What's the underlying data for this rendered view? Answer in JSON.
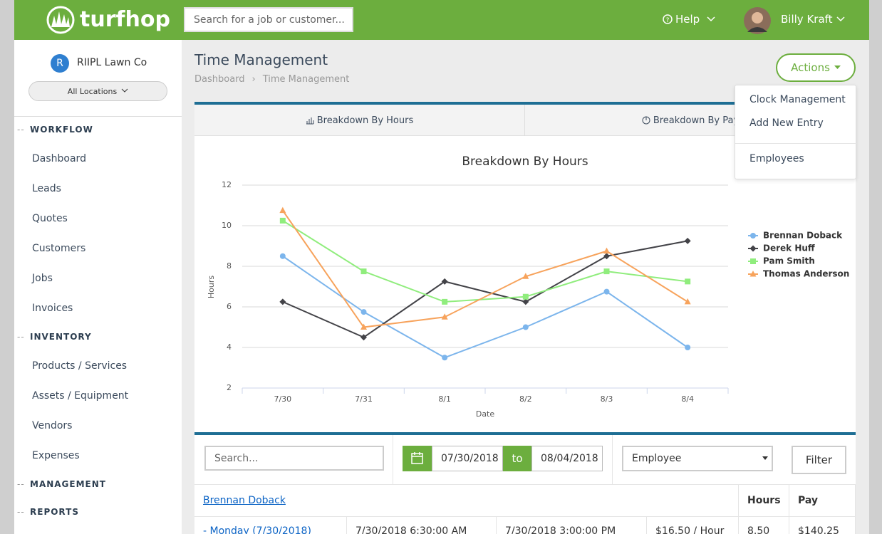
{
  "header": {
    "brand": "turfhop",
    "search_placeholder": "Search for a job or customer...",
    "help": "Help",
    "user": "Billy Kraft"
  },
  "sidebar": {
    "company_initial": "R",
    "company": "RIIPL Lawn Co",
    "location": "All Locations",
    "sections": [
      {
        "title": "WORKFLOW",
        "items": [
          "Dashboard",
          "Leads",
          "Quotes",
          "Customers",
          "Jobs",
          "Invoices"
        ]
      },
      {
        "title": "INVENTORY",
        "items": [
          "Products / Services",
          "Assets / Equipment",
          "Vendors",
          "Expenses"
        ]
      },
      {
        "title": "MANAGEMENT"
      },
      {
        "title": "REPORTS"
      }
    ]
  },
  "page": {
    "title": "Time Management",
    "breadcrumb": [
      "Dashboard",
      "Time Management"
    ],
    "actions": "Actions",
    "actions_menu": [
      "Clock Management",
      "Add New Entry",
      "Employees"
    ]
  },
  "tabs": [
    "Breakdown By Hours",
    "Breakdown By Pay"
  ],
  "chart_data": {
    "type": "line",
    "title": "Breakdown By Hours",
    "x_label": "Date",
    "y_label": "Hours",
    "categories": [
      "7/30",
      "7/31",
      "8/1",
      "8/2",
      "8/3",
      "8/4"
    ],
    "ylim": [
      2,
      12
    ],
    "yticks": [
      2,
      4,
      6,
      8,
      10,
      12
    ],
    "grid": true,
    "legend": "right",
    "series": [
      {
        "name": "Brennan Doback",
        "color": "#7cb5ec",
        "marker": "circle",
        "values": [
          8.5,
          5.75,
          3.5,
          5,
          6.75,
          4
        ]
      },
      {
        "name": "Derek Huff",
        "color": "#434348",
        "marker": "diamond",
        "values": [
          6.25,
          4.5,
          7.25,
          6.25,
          8.5,
          9.25
        ]
      },
      {
        "name": "Pam Smith",
        "color": "#90ed7d",
        "marker": "square",
        "values": [
          10.25,
          7.75,
          6.25,
          6.5,
          7.75,
          7.25
        ]
      },
      {
        "name": "Thomas Anderson",
        "color": "#f7a35c",
        "marker": "triangle",
        "values": [
          10.75,
          5,
          5.5,
          7.5,
          8.75,
          6.25
        ]
      }
    ]
  },
  "filters": {
    "search_placeholder": "Search...",
    "start_date": "07/30/2018",
    "to": "to",
    "end_date": "08/04/2018",
    "employee": "Employee",
    "filter_button": "Filter"
  },
  "table": {
    "employee": "Brennan Doback",
    "columns": [
      "Hours",
      "Pay"
    ],
    "rows": [
      [
        "- Monday (7/30/2018)",
        "7/30/2018 6:30:00 AM",
        "7/30/2018 3:00:00 PM",
        "$16.50 / Hour",
        "8.50",
        "$140.25"
      ]
    ]
  }
}
